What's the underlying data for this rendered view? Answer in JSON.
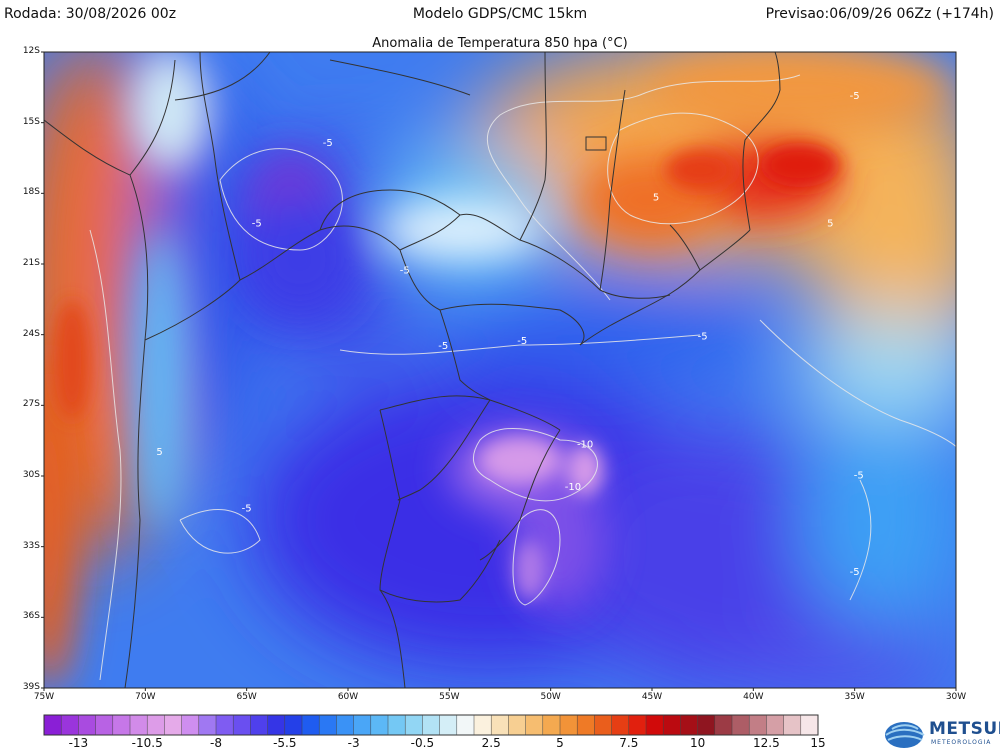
{
  "header": {
    "run": "Rodada: 30/08/2026 00z",
    "model": "Modelo GDPS/CMC 15km",
    "forecast": "Previsao:06/09/26 06Zz (+174h)"
  },
  "subtitle": "Anomalia de Temperatura 850 hpa (°C)",
  "axes": {
    "lat_ticks": [
      "12S",
      "15S",
      "18S",
      "21S",
      "24S",
      "27S",
      "30S",
      "33S",
      "36S",
      "39S"
    ],
    "lon_ticks": [
      "75W",
      "70W",
      "65W",
      "60W",
      "55W",
      "50W",
      "45W",
      "40W",
      "35W",
      "30W"
    ]
  },
  "contour_labels": [
    {
      "text": "-5",
      "lon": -35.0,
      "lat": -14.0
    },
    {
      "text": "5",
      "lon": -44.8,
      "lat": -18.3
    },
    {
      "text": "5",
      "lon": -36.2,
      "lat": -19.4
    },
    {
      "text": "-5",
      "lon": -61.0,
      "lat": -16.0
    },
    {
      "text": "-5",
      "lon": -64.5,
      "lat": -19.4
    },
    {
      "text": "-5",
      "lon": -57.2,
      "lat": -21.4
    },
    {
      "text": "-5",
      "lon": -55.3,
      "lat": -24.6
    },
    {
      "text": "-5",
      "lon": -51.4,
      "lat": -24.4
    },
    {
      "text": "-5",
      "lon": -42.5,
      "lat": -24.2
    },
    {
      "text": "5",
      "lon": -69.3,
      "lat": -29.1
    },
    {
      "text": "-10",
      "lon": -48.3,
      "lat": -28.8
    },
    {
      "text": "-10",
      "lon": -48.9,
      "lat": -30.6
    },
    {
      "text": "-5",
      "lon": -65.0,
      "lat": -31.5
    },
    {
      "text": "-5",
      "lon": -34.8,
      "lat": -30.1
    },
    {
      "text": "-5",
      "lon": -35.0,
      "lat": -34.2
    }
  ],
  "colorbar": {
    "labels": [
      "-13",
      "-10.5",
      "-8",
      "-5.5",
      "-3",
      "-0.5",
      "2.5",
      "5",
      "7.5",
      "10",
      "12.5",
      "15"
    ],
    "colors": [
      "#8a1fd6",
      "#9a35dc",
      "#a94be0",
      "#b862e4",
      "#c677e8",
      "#d28be9",
      "#dd9ce8",
      "#e5aae9",
      "#cf8ef0",
      "#a078f2",
      "#7f5cf2",
      "#6a4ff0",
      "#4f40ec",
      "#3535e6",
      "#2440e8",
      "#1f5cf0",
      "#2a78f4",
      "#3a92f6",
      "#4aa6f7",
      "#5cb8f6",
      "#74c8f4",
      "#92d6f4",
      "#b2e2f5",
      "#d4eef7",
      "#f2f7f8",
      "#fbf1de",
      "#f9e1b8",
      "#f7cf92",
      "#f6bd70",
      "#f4a950",
      "#f29338",
      "#ef7a26",
      "#ea5e1c",
      "#e63e14",
      "#e1200e",
      "#d10a0a",
      "#bb0a10",
      "#a50f17",
      "#8f1520",
      "#9c3b45",
      "#ad5d66",
      "#c27e86",
      "#d59fa6",
      "#e6c3c7",
      "#f6e6e8"
    ]
  },
  "logo": {
    "name": "METSUL",
    "sub": "METEOROLOGIA"
  }
}
